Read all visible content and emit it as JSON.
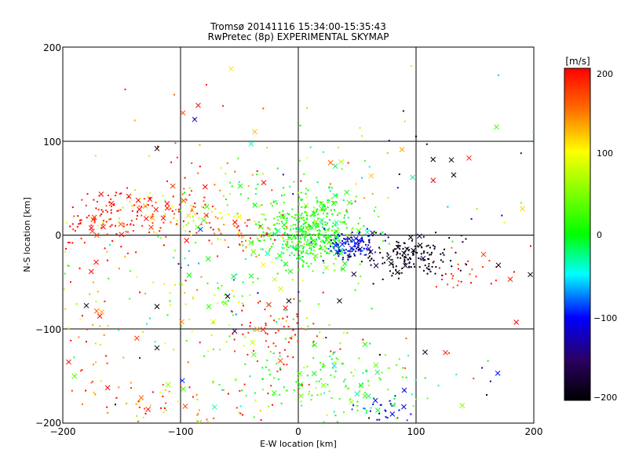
{
  "chart_data": {
    "type": "scatter",
    "title_line1": "Tromsø 20141116 15:34:00-15:35:43",
    "title_line2": "RwPretec (8p) EXPERIMENTAL SKYMAP",
    "xlabel": "E-W location [km]",
    "ylabel": "N-S location [km]",
    "xlim": [
      -200,
      200
    ],
    "ylim": [
      -200,
      200
    ],
    "xticks": [
      -200,
      -100,
      0,
      100,
      200
    ],
    "yticks": [
      -200,
      -100,
      0,
      100,
      200
    ],
    "xtick_labels": [
      "−200",
      "−100",
      "0",
      "100",
      "200"
    ],
    "ytick_labels": [
      "−200",
      "−100",
      "0",
      "100",
      "200"
    ],
    "grid": true,
    "colorbar": {
      "unit_label": "[m/s]",
      "range": [
        -200,
        200
      ],
      "ticks": [
        200,
        100,
        0,
        -100,
        -200
      ],
      "tick_labels": [
        "200",
        "100",
        "0",
        "−100",
        "−200"
      ],
      "colormap": "rainbow (black-purple-blue-cyan-green-yellow-orange-red)"
    },
    "markers": {
      "dot": "small dot",
      "cross": "x"
    },
    "clusters": [
      {
        "cx": 10,
        "cy": 0,
        "sx": 22,
        "sy": 18,
        "n": 420,
        "v": 10,
        "sv": 25
      },
      {
        "cx": -5,
        "cy": 30,
        "sx": 30,
        "sy": 20,
        "n": 90,
        "v": 15,
        "sv": 20
      },
      {
        "cx": 45,
        "cy": -12,
        "sx": 12,
        "sy": 7,
        "n": 110,
        "v": -110,
        "sv": 20
      },
      {
        "cx": 95,
        "cy": -22,
        "sx": 22,
        "sy": 10,
        "n": 160,
        "v": -190,
        "sv": 15
      },
      {
        "cx": 150,
        "cy": -40,
        "sx": 18,
        "sy": 12,
        "n": 30,
        "v": 180,
        "sv": 25
      },
      {
        "cx": -160,
        "cy": 22,
        "sx": 25,
        "sy": 15,
        "n": 110,
        "v": 190,
        "sv": 15
      },
      {
        "cx": -105,
        "cy": 25,
        "sx": 25,
        "sy": 15,
        "n": 90,
        "v": 150,
        "sv": 60
      },
      {
        "cx": -55,
        "cy": 5,
        "sx": 30,
        "sy": 12,
        "n": 70,
        "v": 140,
        "sv": 50
      },
      {
        "cx": -20,
        "cy": -110,
        "sx": 25,
        "sy": 25,
        "n": 70,
        "v": 190,
        "sv": 15
      },
      {
        "cx": -70,
        "cy": -70,
        "sx": 60,
        "sy": 50,
        "n": 160,
        "v": 40,
        "sv": 70
      },
      {
        "cx": 30,
        "cy": -160,
        "sx": 40,
        "sy": 25,
        "n": 160,
        "v": 15,
        "sv": 35
      },
      {
        "cx": 70,
        "cy": -190,
        "sx": 12,
        "sy": 8,
        "n": 30,
        "v": -110,
        "sv": 15
      },
      {
        "cx": -100,
        "cy": -180,
        "sx": 40,
        "sy": 15,
        "n": 70,
        "v": 150,
        "sv": 60
      },
      {
        "cx": -175,
        "cy": -70,
        "sx": 15,
        "sy": 60,
        "n": 60,
        "v": 140,
        "sv": 70
      },
      {
        "cx": -110,
        "cy": 80,
        "sx": 40,
        "sy": 40,
        "n": 25,
        "v": 180,
        "sv": 30
      },
      {
        "cx": 130,
        "cy": 60,
        "sx": 50,
        "sy": 40,
        "n": 25,
        "v": -30,
        "sv": 120
      },
      {
        "cx": 120,
        "cy": -150,
        "sx": 50,
        "sy": 40,
        "n": 25,
        "v": 0,
        "sv": 150
      },
      {
        "cx": 20,
        "cy": 60,
        "sx": 40,
        "sy": 30,
        "n": 40,
        "v": 60,
        "sv": 80
      }
    ],
    "points": [
      {
        "x": -85,
        "y": 138,
        "v": 190,
        "m": "x"
      },
      {
        "x": -88,
        "y": 123,
        "v": -110,
        "m": "x"
      },
      {
        "x": -57,
        "y": 177,
        "v": 110,
        "m": "x"
      },
      {
        "x": -37,
        "y": 110,
        "v": 120,
        "m": "x"
      },
      {
        "x": -98,
        "y": 130,
        "v": 170,
        "m": "x"
      },
      {
        "x": 88,
        "y": 91,
        "v": 130,
        "m": "x"
      },
      {
        "x": 96,
        "y": 180,
        "v": 110,
        "m": "dot"
      },
      {
        "x": -147,
        "y": 155,
        "v": 190,
        "m": "dot"
      },
      {
        "x": -78,
        "y": 160,
        "v": 190,
        "m": "dot"
      },
      {
        "x": 170,
        "y": 170,
        "v": -60,
        "m": "dot"
      },
      {
        "x": 130,
        "y": 80,
        "v": -200,
        "m": "x"
      },
      {
        "x": 145,
        "y": 82,
        "v": 190,
        "m": "x"
      },
      {
        "x": 132,
        "y": 64,
        "v": -200,
        "m": "x"
      },
      {
        "x": 62,
        "y": 63,
        "v": 120,
        "m": "x"
      },
      {
        "x": -120,
        "y": 92,
        "v": -200,
        "m": "x"
      },
      {
        "x": -40,
        "y": 97,
        "v": -40,
        "m": "x"
      },
      {
        "x": 125,
        "y": -125,
        "v": 190,
        "m": "x"
      },
      {
        "x": -120,
        "y": -120,
        "v": -200,
        "m": "x"
      },
      {
        "x": -120,
        "y": -76,
        "v": -200,
        "m": "x"
      },
      {
        "x": -180,
        "y": -75,
        "v": -200,
        "m": "x"
      },
      {
        "x": 170,
        "y": -32,
        "v": -200,
        "m": "x"
      },
      {
        "x": 180,
        "y": -47,
        "v": 190,
        "m": "x"
      },
      {
        "x": 197,
        "y": -42,
        "v": -200,
        "m": "x"
      },
      {
        "x": 90,
        "y": -165,
        "v": -110,
        "m": "x"
      },
      {
        "x": 35,
        "y": -70,
        "v": -200,
        "m": "x"
      },
      {
        "x": -190,
        "y": -150,
        "v": 30,
        "m": "x"
      },
      {
        "x": -195,
        "y": -135,
        "v": 190,
        "m": "x"
      },
      {
        "x": -60,
        "y": -65,
        "v": -200,
        "m": "x"
      },
      {
        "x": -8,
        "y": -70,
        "v": -200,
        "m": "x"
      },
      {
        "x": 100,
        "y": 105,
        "v": -200,
        "m": "dot"
      },
      {
        "x": 160,
        "y": -170,
        "v": -200,
        "m": "dot"
      }
    ]
  }
}
